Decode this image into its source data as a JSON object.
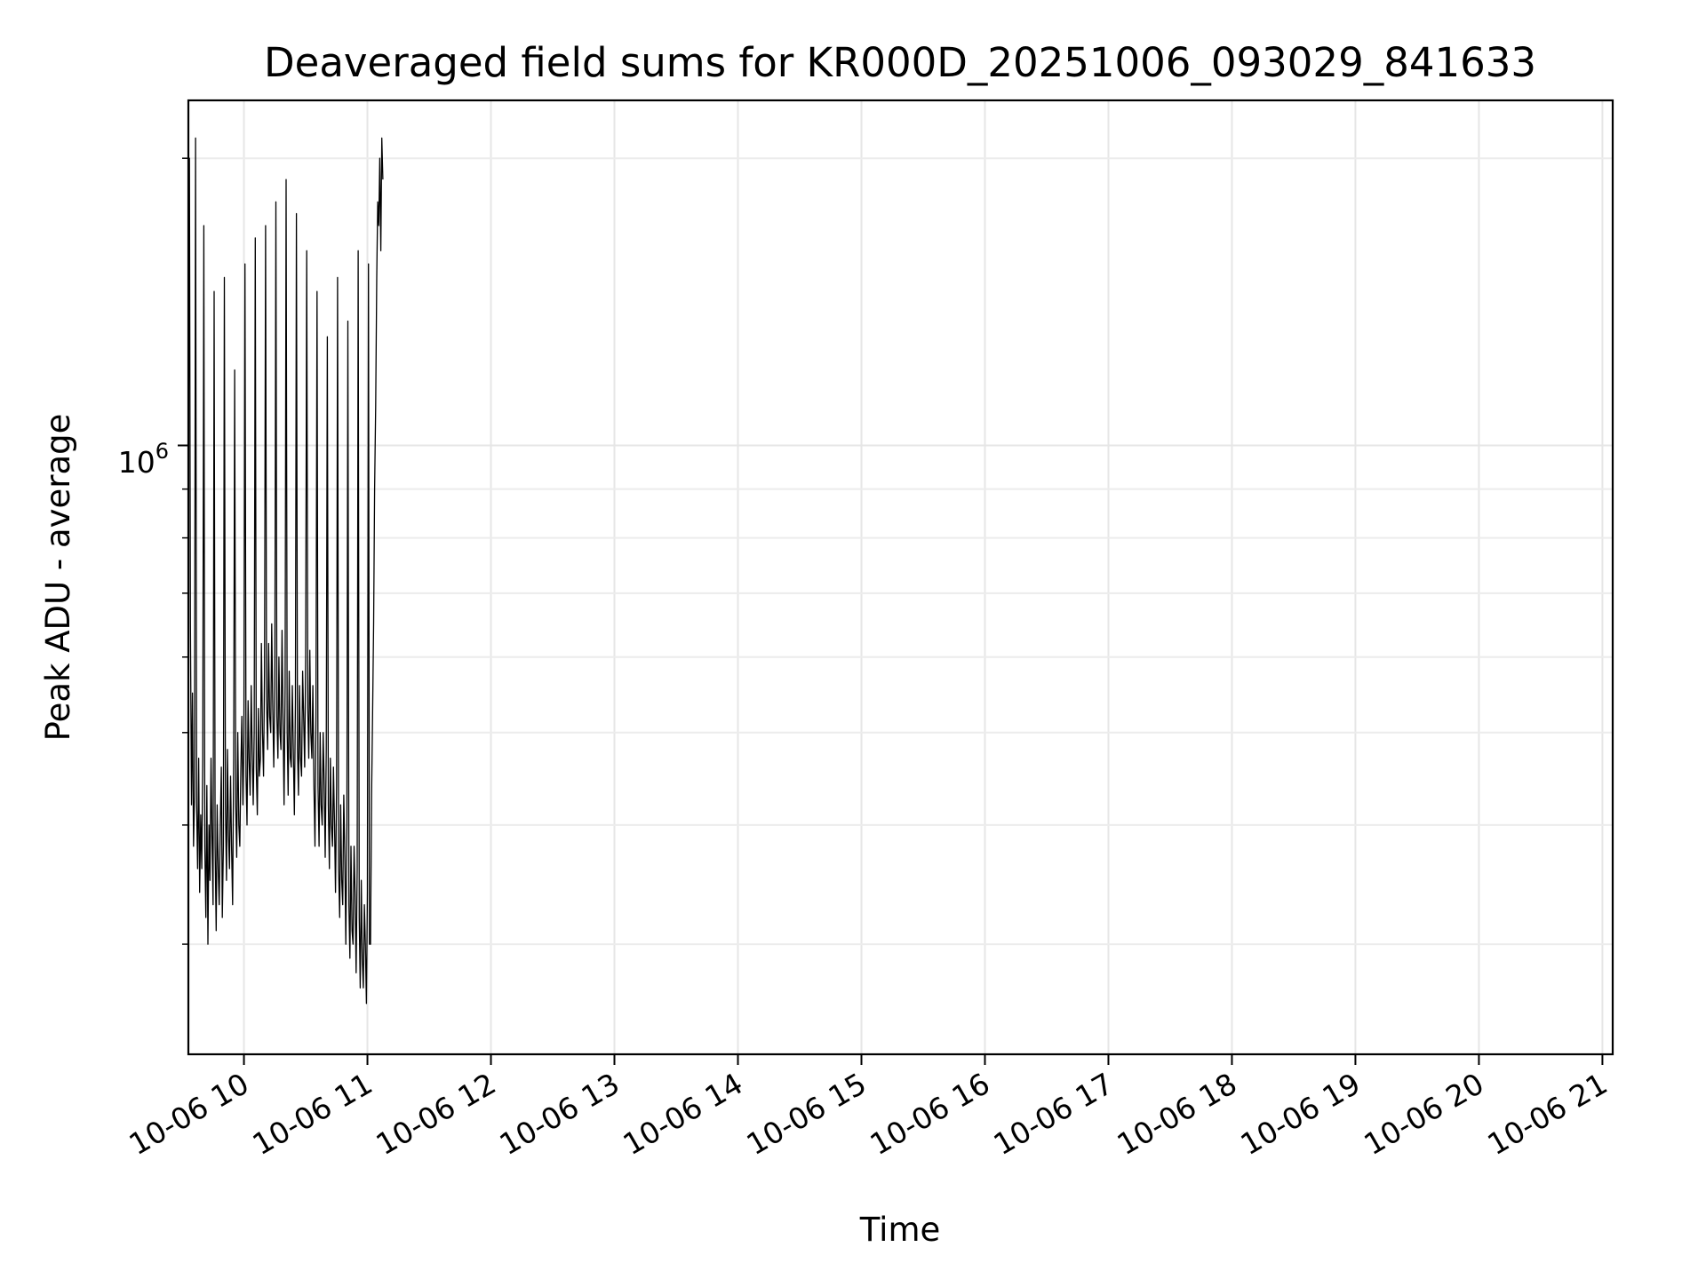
{
  "chart_data": {
    "type": "line",
    "title": "Deaveraged field sums for KR000D_20251006_093029_841633",
    "xlabel": "Time",
    "ylabel": "Peak ADU - average",
    "x_ticks": [
      "10-06 10",
      "10-06 11",
      "10-06 12",
      "10-06 13",
      "10-06 14",
      "10-06 15",
      "10-06 16",
      "10-06 17",
      "10-06 18",
      "10-06 19",
      "10-06 20",
      "10-06 21"
    ],
    "y_ticks": [
      {
        "base": "10",
        "exp": "6",
        "value": 1000000
      }
    ],
    "y_scale": "log",
    "x_range": [
      "2025-10-06 09:33",
      "2025-10-06 21:05"
    ],
    "y_range": [
      230000,
      2300000
    ],
    "grid": true,
    "line_color": "#000000",
    "series": [
      {
        "x_start": "2025-10-06 09:33",
        "sample_interval_seconds": 30,
        "values": [
          900000,
          2000000,
          650000,
          420000,
          550000,
          380000,
          430000,
          2100000,
          420000,
          360000,
          470000,
          340000,
          410000,
          360000,
          470000,
          1700000,
          380000,
          320000,
          440000,
          300000,
          400000,
          350000,
          470000,
          390000,
          330000,
          1450000,
          380000,
          310000,
          420000,
          360000,
          330000,
          400000,
          460000,
          320000,
          380000,
          1500000,
          420000,
          350000,
          480000,
          390000,
          360000,
          450000,
          380000,
          330000,
          470000,
          1200000,
          420000,
          370000,
          500000,
          400000,
          380000,
          460000,
          520000,
          420000,
          490000,
          1550000,
          450000,
          400000,
          540000,
          470000,
          430000,
          560000,
          480000,
          420000,
          500000,
          1650000,
          460000,
          410000,
          530000,
          450000,
          470000,
          620000,
          500000,
          450000,
          580000,
          1700000,
          540000,
          480000,
          620000,
          520000,
          500000,
          650000,
          530000,
          460000,
          560000,
          1800000,
          520000,
          470000,
          600000,
          500000,
          480000,
          640000,
          510000,
          420000,
          560000,
          1900000,
          500000,
          430000,
          580000,
          470000,
          460000,
          560000,
          480000,
          410000,
          540000,
          1750000,
          480000,
          430000,
          560000,
          470000,
          450000,
          580000,
          520000,
          460000,
          600000,
          1600000,
          530000,
          470000,
          610000,
          500000,
          470000,
          560000,
          440000,
          380000,
          520000,
          1450000,
          440000,
          380000,
          500000,
          420000,
          400000,
          500000,
          440000,
          370000,
          480000,
          1300000,
          420000,
          360000,
          470000,
          400000,
          380000,
          460000,
          400000,
          340000,
          440000,
          1500000,
          360000,
          320000,
          420000,
          350000,
          330000,
          430000,
          370000,
          300000,
          400000,
          1350000,
          330000,
          290000,
          380000,
          310000,
          300000,
          380000,
          340000,
          280000,
          360000,
          1600000,
          320000,
          270000,
          350000,
          290000,
          270000,
          330000,
          300000,
          260000,
          340000,
          1550000,
          300000,
          300000,
          430000,
          520000,
          650000,
          900000,
          1100000,
          1500000,
          1800000,
          1700000,
          2000000,
          1600000,
          2100000,
          1900000
        ]
      }
    ]
  }
}
